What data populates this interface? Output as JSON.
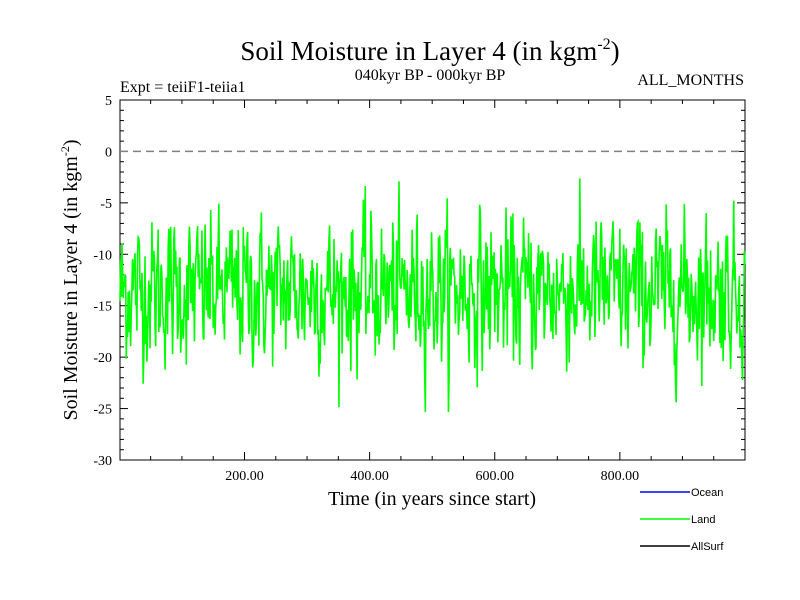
{
  "chart_data": {
    "type": "line",
    "title": "Soil Moisture in Layer 4 (in kgm",
    "title_sup": "-2",
    "title_tail": ")",
    "subtitle": "040kyr BP - 000kyr BP",
    "expt_label": "Expt = teiiF1-teiia1",
    "months_label": "ALL_MONTHS",
    "xlabel": "Time (in years since start)",
    "ylabel": "Soil Moisture in Layer 4 (in kgm",
    "ylabel_sup": "-2",
    "ylabel_tail": ")",
    "xlim": [
      1,
      1000
    ],
    "ylim": [
      -30,
      5
    ],
    "x_ticks": [
      200,
      400,
      600,
      800
    ],
    "x_tick_labels": [
      "200.00",
      "400.00",
      "600.00",
      "800.00"
    ],
    "y_ticks": [
      5,
      0,
      -5,
      -10,
      -15,
      -20,
      -25,
      -30
    ],
    "y_tick_labels": [
      "5",
      "0",
      "-5",
      "-10",
      "-15",
      "-20",
      "-25",
      "-30"
    ],
    "reference_line": 0,
    "grid": false,
    "legend_position": "bottom-right",
    "series": [
      {
        "name": "Ocean",
        "color": "#0000ff",
        "values": []
      },
      {
        "name": "Land",
        "color": "#00ff00",
        "mean": -13.5,
        "min": -25.5,
        "max": 0.2,
        "n_points": 1000
      },
      {
        "name": "AllSurf",
        "color": "#000000",
        "values": []
      }
    ]
  }
}
